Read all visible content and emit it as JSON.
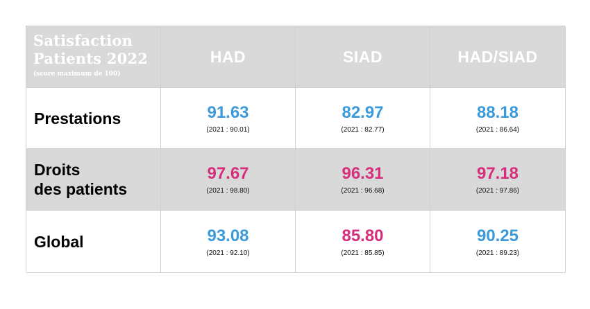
{
  "title": {
    "line1": "Satisfaction",
    "line2": "Patients 2022",
    "subtitle": "(score maximum de 100)"
  },
  "columns": [
    "HAD",
    "SIAD",
    "HAD/SIAD"
  ],
  "rows": [
    {
      "label_lines": [
        "Prestations"
      ],
      "values": [
        {
          "value": "91.63",
          "prev": "(2021 : 90.01)"
        },
        {
          "value": "82.97",
          "prev": "(2021 : 82.77)"
        },
        {
          "value": "88.18",
          "prev": "(2021 : 86.64)"
        }
      ]
    },
    {
      "label_lines": [
        "Droits",
        "des patients"
      ],
      "values": [
        {
          "value": "97.67",
          "prev": "(2021 : 98.80)"
        },
        {
          "value": "96.31",
          "prev": "(2021 : 96.68)"
        },
        {
          "value": "97.18",
          "prev": "(2021 : 97.86)"
        }
      ]
    },
    {
      "label_lines": [
        "Global"
      ],
      "values": [
        {
          "value": "93.08",
          "prev": "(2021 : 92.10)"
        },
        {
          "value": "85.80",
          "prev": "(2021 : 85.85)"
        },
        {
          "value": "90.25",
          "prev": "(2021 : 89.23)"
        }
      ]
    }
  ],
  "colors": {
    "header_background": "#d9d9d9",
    "blue_value": "#3b9ad9",
    "pink_value": "#d62e7d"
  }
}
